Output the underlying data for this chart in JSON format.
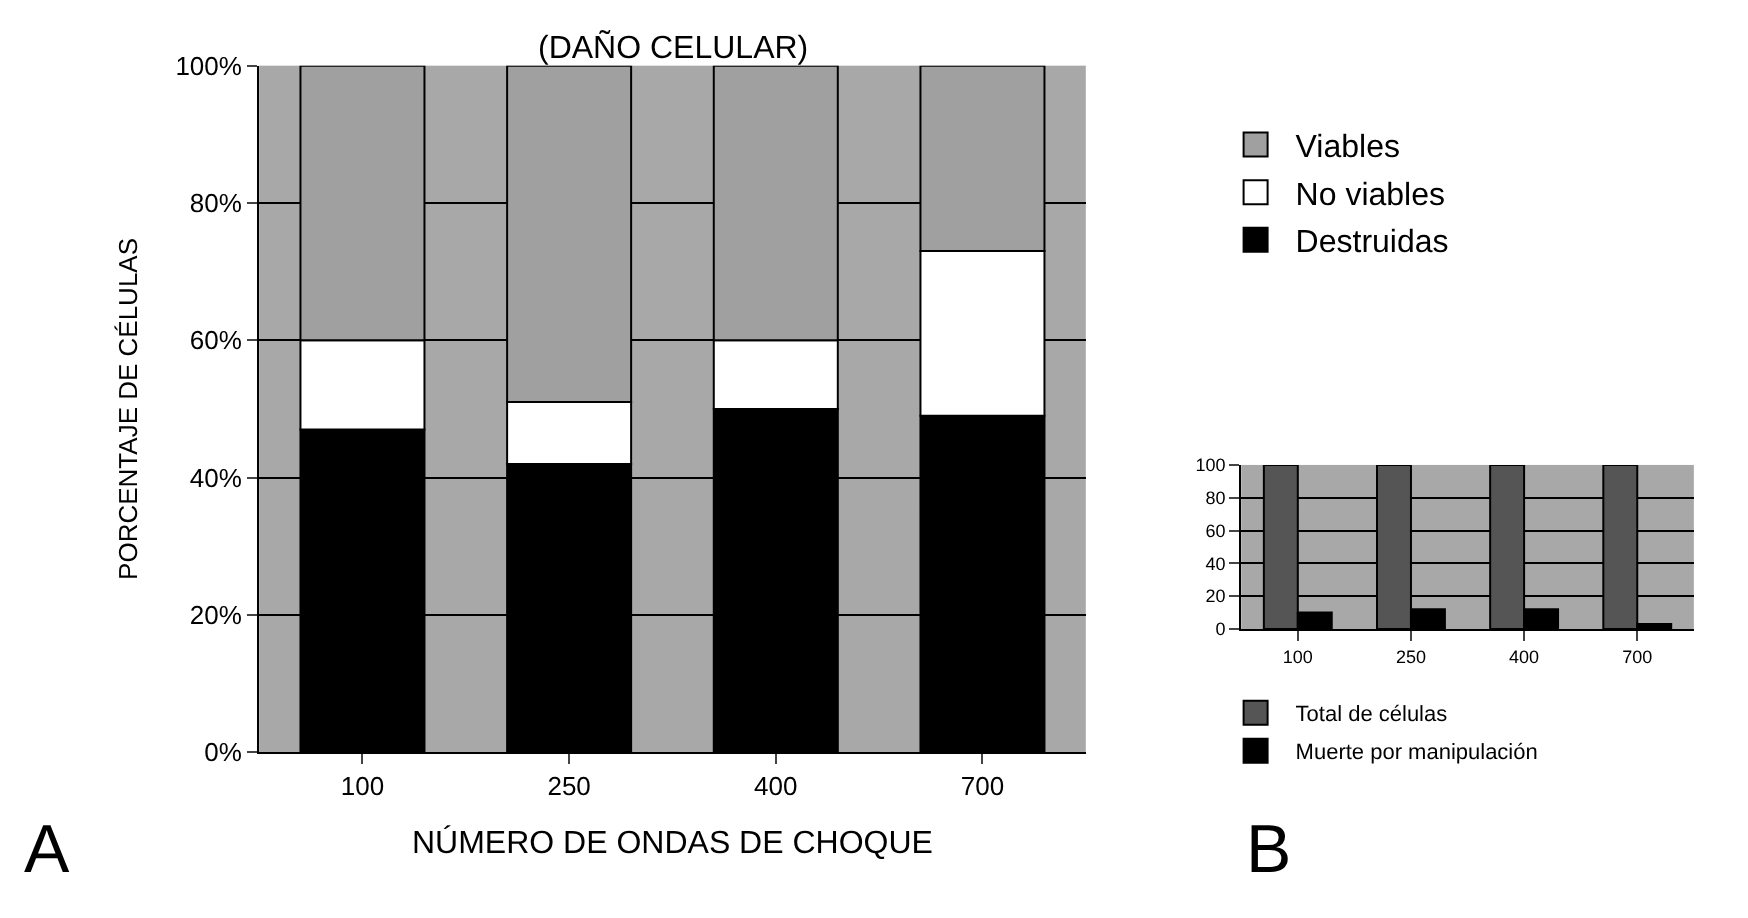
{
  "chart_data": [
    {
      "type": "bar",
      "stacked": true,
      "title": "(DAÑO CELULAR)",
      "xlabel": "NÚMERO DE ONDAS DE CHOQUE",
      "ylabel": "PORCENTAJE DE CÉLULAS",
      "categories": [
        "100",
        "250",
        "400",
        "700"
      ],
      "series": [
        {
          "name": "Destruidas",
          "color": "#000000",
          "values": [
            47,
            42,
            50,
            49
          ]
        },
        {
          "name": "No viables",
          "color": "#ffffff",
          "values": [
            13,
            9,
            10,
            24
          ]
        },
        {
          "name": "Viables",
          "color": "#a0a0a0",
          "values": [
            40,
            49,
            40,
            27
          ]
        }
      ],
      "ylim": [
        0,
        100
      ],
      "yticks": [
        {
          "value": 0,
          "label": "0%"
        },
        {
          "value": 20,
          "label": "20%"
        },
        {
          "value": 40,
          "label": "40%"
        },
        {
          "value": 60,
          "label": "60%"
        },
        {
          "value": 80,
          "label": "80%"
        },
        {
          "value": 100,
          "label": "100%"
        }
      ],
      "grid": "y",
      "legend": "right",
      "annotations": [
        "A"
      ]
    },
    {
      "type": "bar",
      "categories": [
        "100",
        "250",
        "400",
        "700"
      ],
      "series": [
        {
          "name": "Total de células",
          "color": "#555555",
          "values": [
            100,
            100,
            100,
            100
          ]
        },
        {
          "name": "Muerte por manipulación",
          "color": "#000000",
          "values": [
            10,
            12,
            12,
            3
          ]
        }
      ],
      "ylim": [
        0,
        100
      ],
      "yticks": [
        0,
        20,
        40,
        60,
        80,
        100
      ],
      "grid": "y",
      "legend": "bottom",
      "annotations": [
        "B"
      ]
    }
  ]
}
